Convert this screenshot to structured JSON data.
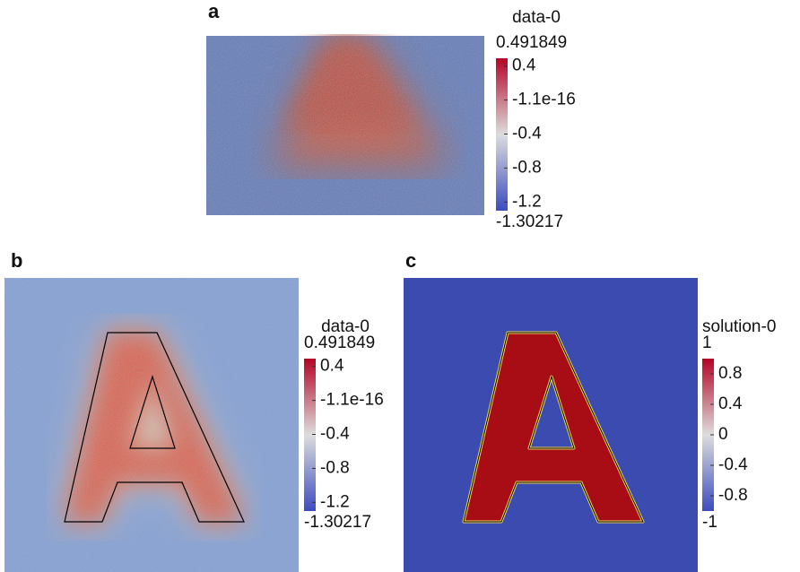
{
  "panels": [
    {
      "label": "a",
      "colorbar": {
        "title": "data-0",
        "max": 0.491849,
        "min": -1.30217,
        "ticks": [
          0.4,
          {
            "value": -1.1e-16,
            "label": "-1.1e-16"
          },
          -0.4,
          -0.8,
          -1.2
        ]
      }
    },
    {
      "label": "b",
      "colorbar": {
        "title": "data-0",
        "max": 0.491849,
        "min": -1.30217,
        "ticks": [
          0.4,
          {
            "value": -1.1e-16,
            "label": "-1.1e-16"
          },
          -0.4,
          -0.8,
          -1.2
        ]
      }
    },
    {
      "label": "c",
      "colorbar": {
        "title": "solution-0",
        "max": 1,
        "min": -1,
        "ticks": [
          0.8,
          0.4,
          0,
          -0.4,
          -0.8
        ]
      }
    }
  ]
}
